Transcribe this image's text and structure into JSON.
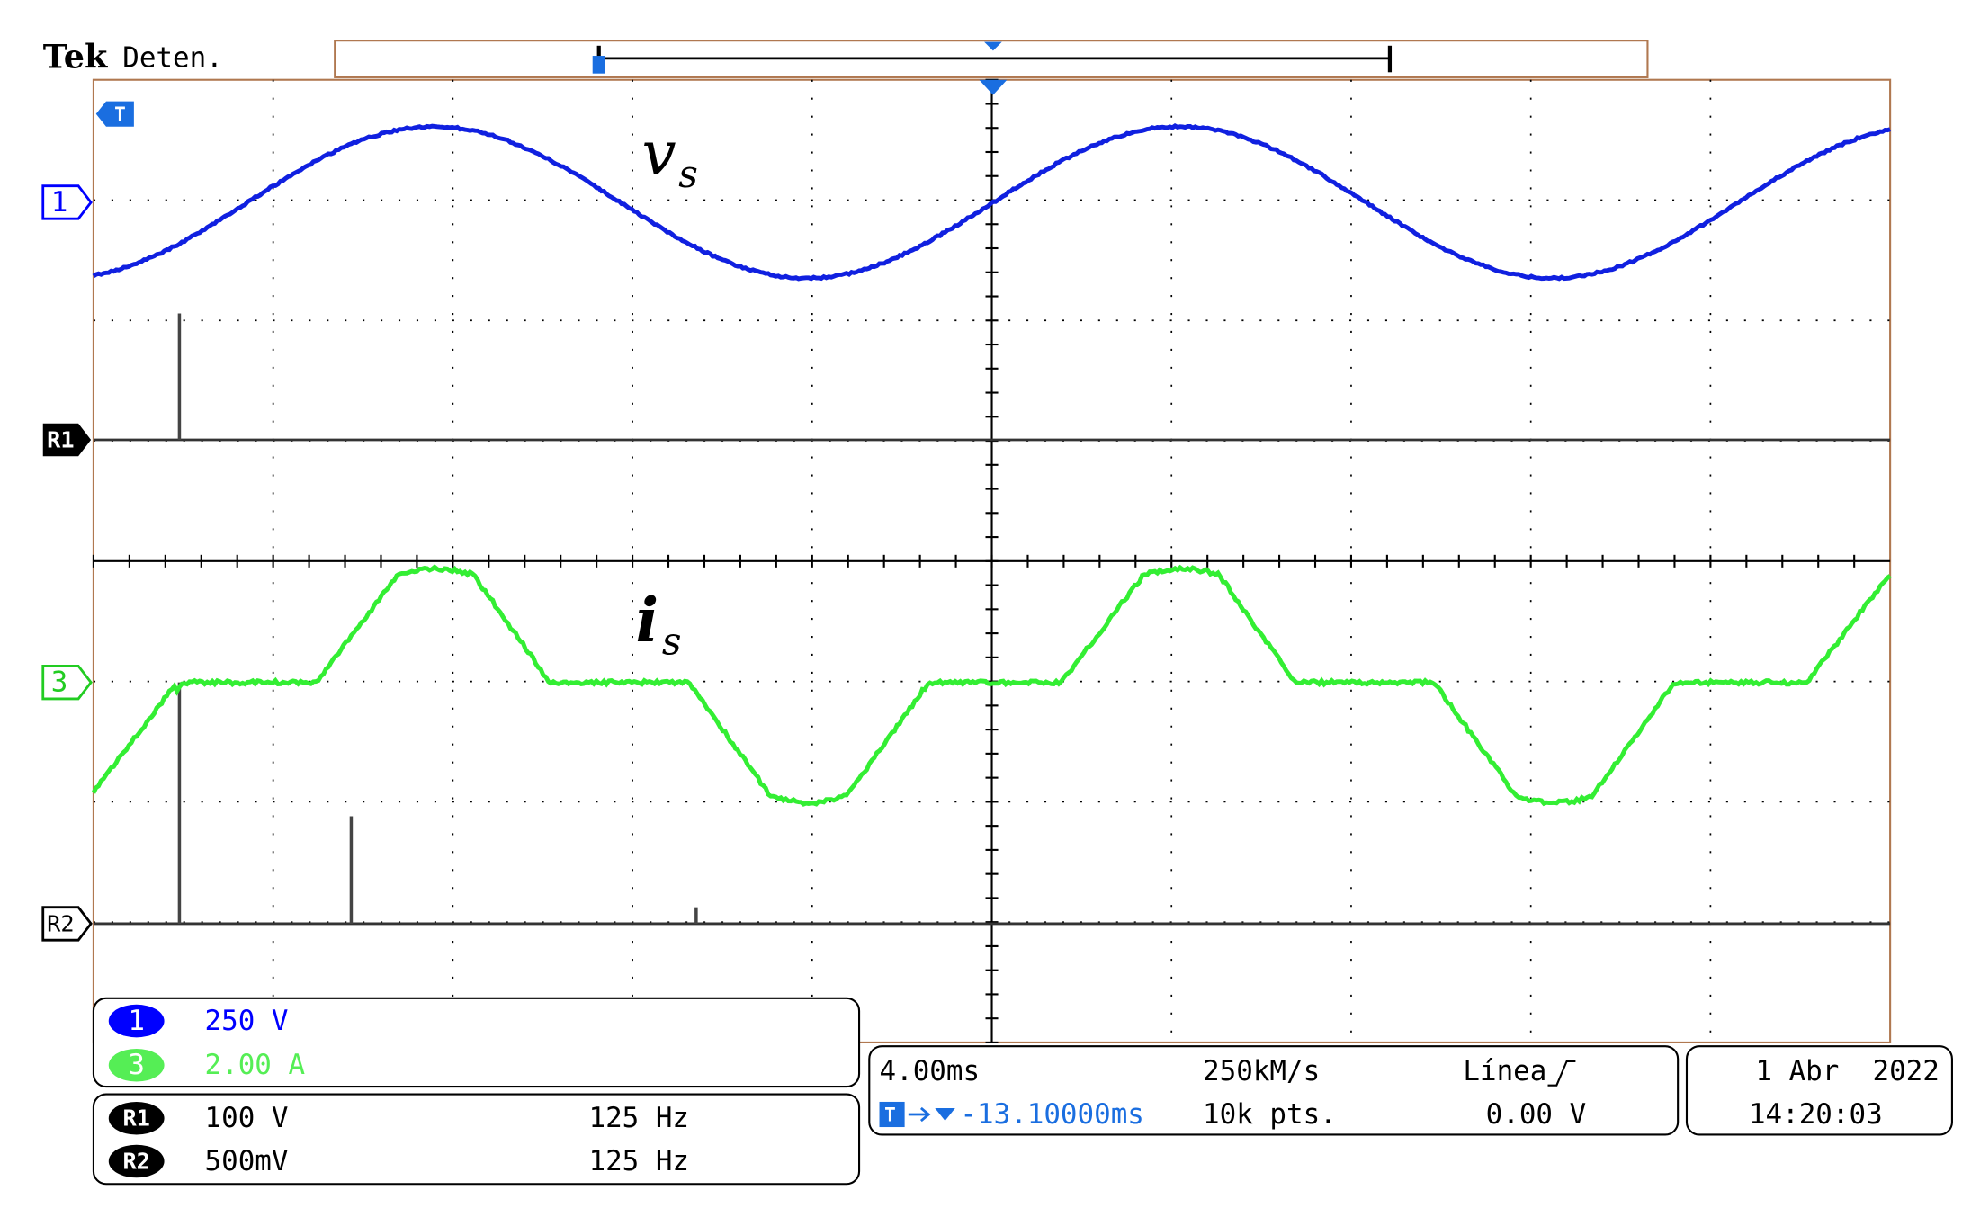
{
  "header": {
    "brand": "Tek",
    "status": "Deten."
  },
  "waveforms": {
    "voltage": {
      "label": "v",
      "subscript": "s"
    },
    "current": {
      "label": "i",
      "subscript": "s"
    }
  },
  "markers": {
    "trigger": "T",
    "ch1": "1",
    "ref1": "R1",
    "ch3": "3",
    "ref2": "R2"
  },
  "channels": [
    {
      "id": "1",
      "scale": "250 V"
    },
    {
      "id": "3",
      "scale": "2.00 A"
    }
  ],
  "references": [
    {
      "id": "R1",
      "scale": "100 V",
      "rate": "125 Hz"
    },
    {
      "id": "R2",
      "scale": "500mV",
      "rate": "125 Hz"
    }
  ],
  "acquisition": {
    "timebase": "4.00ms",
    "sample_rate": "250kM/s",
    "trigger_source": "Línea",
    "position": "-13.10000ms",
    "record_length": "10k pts.",
    "trigger_level": "0.00 V"
  },
  "timestamp": {
    "date": "1 Abr  2022",
    "time": "14:20:03"
  }
}
